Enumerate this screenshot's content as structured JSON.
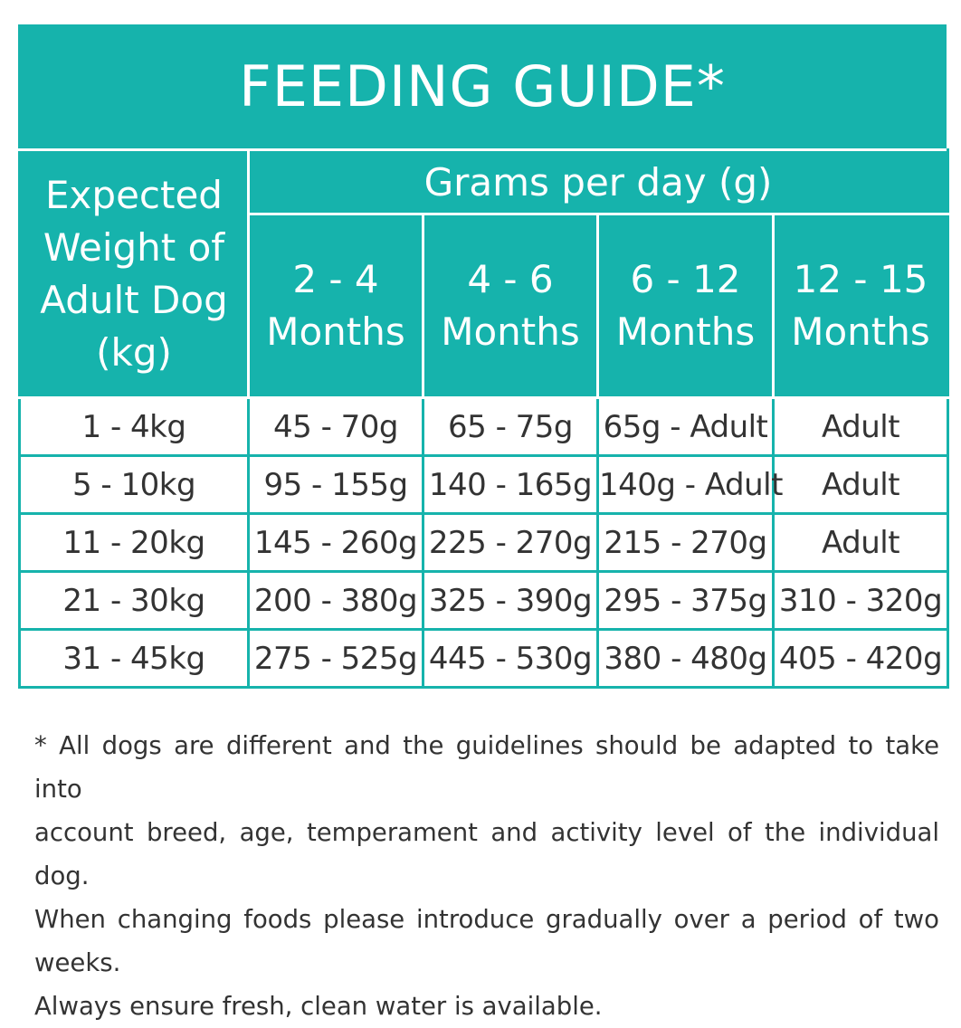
{
  "title": "FEEDING GUIDE*",
  "table": {
    "weight_header_lines": [
      "Expected",
      "Weight of",
      "Adult Dog",
      "(kg)"
    ],
    "grams_header": "Grams per day (g)",
    "age_headers": [
      {
        "range": "2 - 4",
        "unit": "Months"
      },
      {
        "range": "4 - 6",
        "unit": "Months"
      },
      {
        "range": "6 - 12",
        "unit": "Months"
      },
      {
        "range": "12 - 15",
        "unit": "Months"
      }
    ],
    "rows": [
      {
        "weight": "1 - 4kg",
        "values": [
          "45 - 70g",
          "65 - 75g",
          "65g - Adult",
          "Adult"
        ]
      },
      {
        "weight": "5 - 10kg",
        "values": [
          "95 - 155g",
          "140 - 165g",
          "140g - Adult",
          "Adult"
        ]
      },
      {
        "weight": "11 - 20kg",
        "values": [
          "145 - 260g",
          "225 - 270g",
          "215 - 270g",
          "Adult"
        ]
      },
      {
        "weight": "21 - 30kg",
        "values": [
          "200 - 380g",
          "325 - 390g",
          "295 - 375g",
          "310 - 320g"
        ]
      },
      {
        "weight": "31 - 45kg",
        "values": [
          "275 - 525g",
          "445 - 530g",
          "380 - 480g",
          "405 - 420g"
        ]
      }
    ]
  },
  "footnote": [
    "* All dogs are different and the guidelines should be adapted to take into",
    "account breed, age, temperament and activity level of the individual dog.",
    "When changing foods please introduce gradually over a period of two weeks.",
    "Always ensure fresh, clean water is available."
  ],
  "colors": {
    "accent": "#16B3AC",
    "text": "#333333"
  }
}
